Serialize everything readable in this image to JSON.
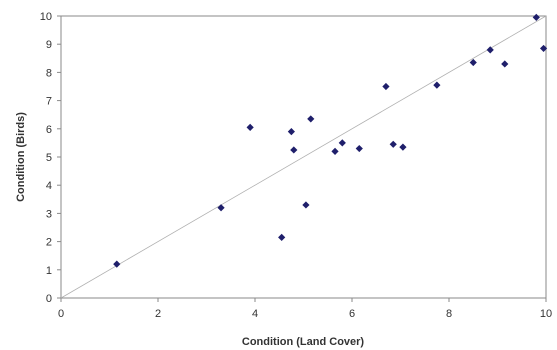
{
  "chart_data": {
    "type": "scatter",
    "title": "",
    "xlabel": "Condition (Land Cover)",
    "ylabel": "Condition (Birds)",
    "xlim": [
      0,
      10
    ],
    "ylim": [
      0,
      10
    ],
    "x_ticks": [
      0,
      2,
      4,
      6,
      8,
      10
    ],
    "y_ticks": [
      0,
      1,
      2,
      3,
      4,
      5,
      6,
      7,
      8,
      9,
      10
    ],
    "grid": false,
    "legend": "none",
    "marker_color": "#1f1f6b",
    "reference_line": {
      "from": [
        0,
        0
      ],
      "to": [
        10,
        10
      ],
      "color": "#b0b0b0"
    },
    "points": [
      {
        "x": 1.15,
        "y": 1.2
      },
      {
        "x": 3.3,
        "y": 3.2
      },
      {
        "x": 3.9,
        "y": 6.05
      },
      {
        "x": 4.55,
        "y": 2.15
      },
      {
        "x": 4.75,
        "y": 5.9
      },
      {
        "x": 4.8,
        "y": 5.25
      },
      {
        "x": 5.05,
        "y": 3.3
      },
      {
        "x": 5.15,
        "y": 6.35
      },
      {
        "x": 5.65,
        "y": 5.2
      },
      {
        "x": 5.8,
        "y": 5.5
      },
      {
        "x": 6.15,
        "y": 5.3
      },
      {
        "x": 6.7,
        "y": 7.5
      },
      {
        "x": 6.85,
        "y": 5.45
      },
      {
        "x": 7.05,
        "y": 5.35
      },
      {
        "x": 7.75,
        "y": 7.55
      },
      {
        "x": 8.5,
        "y": 8.35
      },
      {
        "x": 8.85,
        "y": 8.8
      },
      {
        "x": 9.15,
        "y": 8.3
      },
      {
        "x": 9.8,
        "y": 9.95
      },
      {
        "x": 9.95,
        "y": 8.85
      }
    ]
  }
}
